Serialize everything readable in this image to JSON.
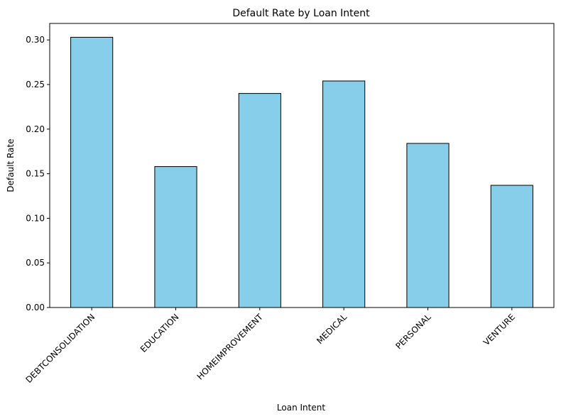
{
  "chart_data": {
    "type": "bar",
    "title": "Default Rate by Loan Intent",
    "xlabel": "Loan Intent",
    "ylabel": "Default Rate",
    "categories": [
      "DEBTCONSOLIDATION",
      "EDUCATION",
      "HOMEIMPROVEMENT",
      "MEDICAL",
      "PERSONAL",
      "VENTURE"
    ],
    "values": [
      0.303,
      0.158,
      0.24,
      0.254,
      0.184,
      0.137
    ],
    "ylim": [
      0,
      0.3185
    ],
    "yticks": [
      "0.00",
      "0.05",
      "0.10",
      "0.15",
      "0.20",
      "0.25",
      "0.30"
    ],
    "ytick_values": [
      0,
      0.05,
      0.1,
      0.15,
      0.2,
      0.25,
      0.3
    ],
    "bar_color": "#87CEEB",
    "edge_color": "#000000",
    "grid": false,
    "legend": "none"
  }
}
